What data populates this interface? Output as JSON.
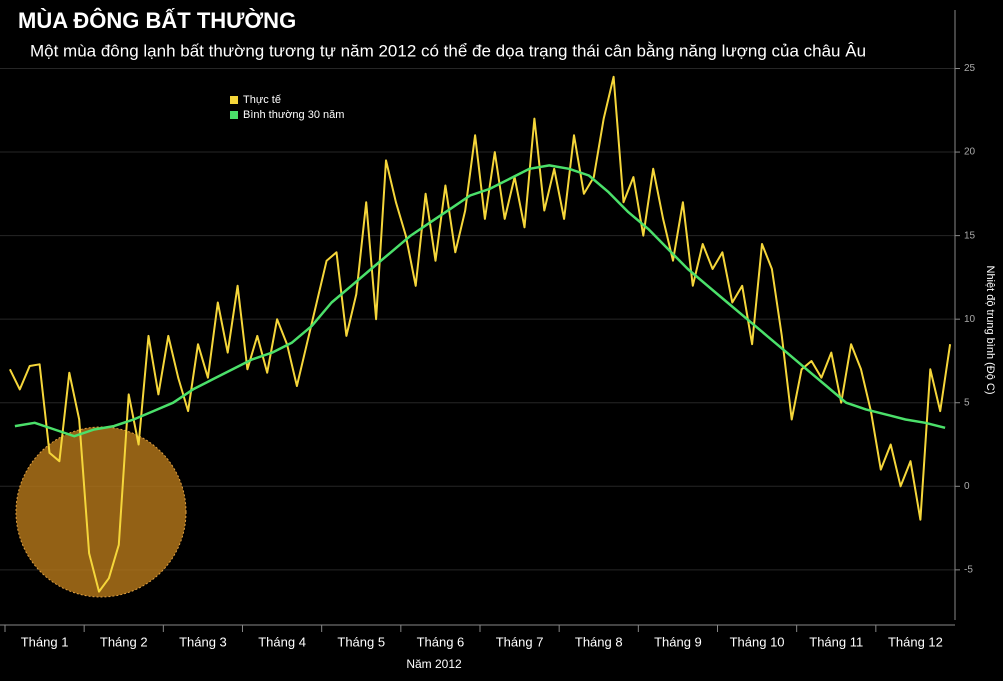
{
  "chart_data": {
    "type": "line",
    "title": "MÙA ĐÔNG BẤT THƯỜNG",
    "subtitle": "Một mùa đông lạnh bất thường tương tự năm 2012 có thể đe dọa trạng thái cân bằng năng lượng của châu Âu",
    "x_label": "Năm 2012",
    "y_label": "Nhiệt độ trung bình (Độ C)",
    "categories": [
      "Tháng 1",
      "Tháng 2",
      "Tháng 3",
      "Tháng 4",
      "Tháng 5",
      "Tháng 6",
      "Tháng 7",
      "Tháng 8",
      "Tháng 9",
      "Tháng 10",
      "Tháng 11",
      "Tháng 12"
    ],
    "series": [
      {
        "name": "Thực tế",
        "color": "#f5d63a",
        "values": [
          [
            7,
            5.8,
            7.2,
            7.3,
            2,
            1.5,
            6.8,
            4
          ],
          [
            -4,
            -6.3,
            -5.5,
            -3.5,
            5.5,
            2.5,
            9,
            5.5
          ],
          [
            9,
            6.5,
            4.5,
            8.5,
            6.5,
            11,
            8,
            12
          ],
          [
            7,
            9,
            6.8,
            10,
            8.5,
            6,
            8.5,
            11
          ],
          [
            13.5,
            14,
            9,
            11.5,
            17,
            10,
            19.5,
            17
          ],
          [
            15,
            12,
            17.5,
            13.5,
            18,
            14,
            16.5,
            21
          ],
          [
            16,
            20,
            16,
            18.5,
            15.5,
            22,
            16.5,
            19
          ],
          [
            16,
            21,
            17.5,
            18.5,
            22,
            24.5,
            17,
            18.5
          ],
          [
            15,
            19,
            16,
            13.5,
            17,
            12,
            14.5,
            13
          ],
          [
            14,
            11,
            12,
            8.5,
            14.5,
            13,
            9,
            4
          ],
          [
            7,
            7.5,
            6.5,
            8,
            5,
            8.5,
            7,
            4.5
          ],
          [
            1,
            2.5,
            0,
            1.5,
            -2,
            7,
            4.5,
            8.5
          ]
        ]
      },
      {
        "name": "Bình thường 30 năm",
        "color": "#4be06a",
        "values": [
          [
            3.6,
            3.8,
            3.4,
            3.0
          ],
          [
            3.4,
            3.6,
            4.0,
            4.5
          ],
          [
            5.0,
            5.8,
            6.4,
            7.0
          ],
          [
            7.6,
            8.0,
            8.6,
            9.6
          ],
          [
            11.0,
            12.0,
            13.0,
            14.0
          ],
          [
            15.0,
            15.8,
            16.6,
            17.4
          ],
          [
            17.8,
            18.4,
            19.0,
            19.2
          ],
          [
            19.0,
            18.6,
            17.6,
            16.4
          ],
          [
            15.4,
            14.2,
            13.0,
            12.0
          ],
          [
            11.0,
            10.0,
            9.0,
            8.0
          ],
          [
            7.0,
            6.0,
            5.0,
            4.6
          ],
          [
            4.3,
            4.0,
            3.8,
            3.5
          ]
        ]
      }
    ],
    "ylim": [
      -8,
      28.5
    ],
    "yticks": [
      -5,
      0,
      5,
      10,
      15,
      20,
      25
    ],
    "grid": true
  }
}
